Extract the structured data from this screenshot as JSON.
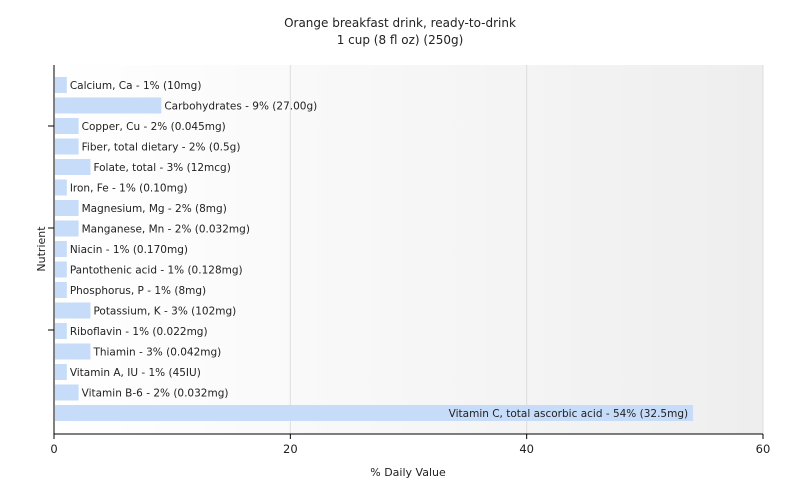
{
  "chart_data": {
    "type": "bar",
    "orientation": "horizontal",
    "title": "Orange breakfast drink, ready-to-drink",
    "subtitle": "1 cup (8 fl oz) (250g)",
    "xlabel": "% Daily Value",
    "ylabel": "Nutrient",
    "xlim": [
      0,
      60
    ],
    "xticks": [
      "0",
      "20",
      "40",
      "60"
    ],
    "grid": true,
    "bar_color": "#c6dcf8",
    "categories": [
      "Calcium, Ca",
      "Carbohydrates",
      "Copper, Cu",
      "Fiber, total dietary",
      "Folate, total",
      "Iron, Fe",
      "Magnesium, Mg",
      "Manganese, Mn",
      "Niacin",
      "Pantothenic acid",
      "Phosphorus, P",
      "Potassium, K",
      "Riboflavin",
      "Thiamin",
      "Vitamin A, IU",
      "Vitamin B-6",
      "Vitamin C, total ascorbic acid"
    ],
    "values": [
      1,
      9,
      2,
      2,
      3,
      1,
      2,
      2,
      1,
      1,
      1,
      3,
      1,
      3,
      1,
      2,
      54
    ],
    "labels": [
      "Calcium, Ca - 1% (10mg)",
      "Carbohydrates - 9% (27.00g)",
      "Copper, Cu - 2% (0.045mg)",
      "Fiber, total dietary - 2% (0.5g)",
      "Folate, total - 3% (12mcg)",
      "Iron, Fe - 1% (0.10mg)",
      "Magnesium, Mg - 2% (8mg)",
      "Manganese, Mn - 2% (0.032mg)",
      "Niacin - 1% (0.170mg)",
      "Pantothenic acid - 1% (0.128mg)",
      "Phosphorus, P - 1% (8mg)",
      "Potassium, K - 3% (102mg)",
      "Riboflavin - 1% (0.022mg)",
      "Thiamin - 3% (0.042mg)",
      "Vitamin A, IU - 1% (45IU)",
      "Vitamin B-6 - 2% (0.032mg)",
      "Vitamin C, total ascorbic acid - 54% (32.5mg)"
    ]
  }
}
